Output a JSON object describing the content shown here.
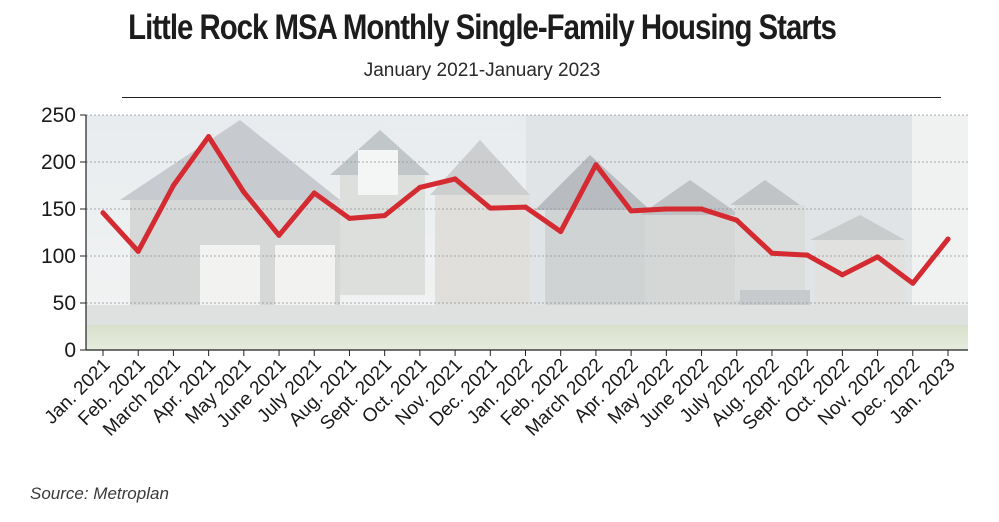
{
  "chart_data": {
    "type": "line",
    "title": "Little Rock MSA Monthly Single-Family Housing Starts",
    "subtitle": "January 2021-January 2023",
    "source": "Source: Metroplan",
    "categories": [
      "Jan. 2021",
      "Feb. 2021",
      "March 2021",
      "Apr. 2021",
      "May 2021",
      "June 2021",
      "July 2021",
      "Aug. 2021",
      "Sept. 2021",
      "Oct. 2021",
      "Nov. 2021",
      "Dec. 2021",
      "Jan. 2022",
      "Feb. 2022",
      "March 2022",
      "Apr. 2022",
      "May 2022",
      "June 2022",
      "July 2022",
      "Aug. 2022",
      "Sept. 2022",
      "Oct. 2022",
      "Nov. 2022",
      "Dec. 2022",
      "Jan. 2023"
    ],
    "values": [
      146,
      105,
      175,
      227,
      168,
      122,
      167,
      140,
      143,
      173,
      182,
      151,
      152,
      126,
      197,
      148,
      150,
      150,
      138,
      103,
      101,
      80,
      99,
      71,
      118
    ],
    "yticks": [
      0,
      50,
      100,
      150,
      200,
      250
    ],
    "ylim": [
      0,
      250
    ],
    "grid": true,
    "line_color": "#d42a31"
  }
}
